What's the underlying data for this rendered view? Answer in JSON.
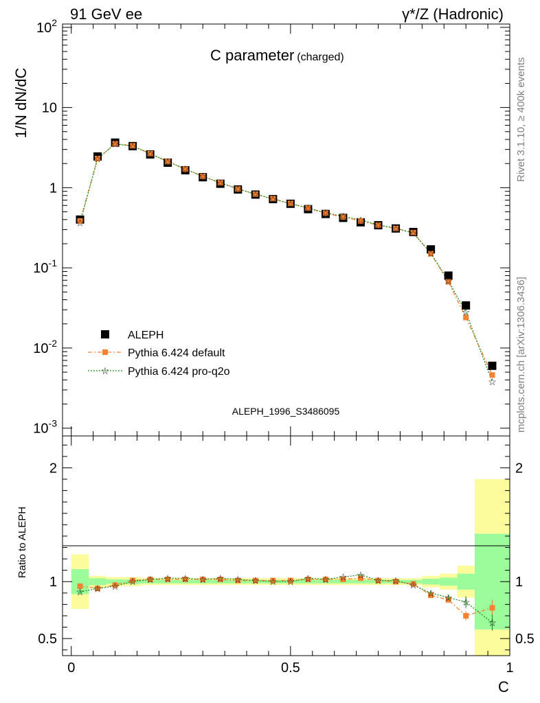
{
  "header": {
    "left": "91 GeV ee",
    "right": "γ*/Z (Hadronic)"
  },
  "side_labels": {
    "top": "Rivet 3.1.10, ≥ 400k events",
    "bottom": "mcplots.cern.ch [arXiv:1306.3436]"
  },
  "colors": {
    "data": "#000000",
    "default": "#f58231",
    "proq2o": "#1f8f1f",
    "band_inner": "#9cfc9c",
    "band_outer": "#fcfc9c"
  },
  "chart_data": [
    {
      "type": "line",
      "name": "main",
      "title": "C parameter",
      "title_suffix": "(charged)",
      "ylabel": "1/N dN/dC",
      "yscale": "log",
      "ylim": [
        0.0008,
        110
      ],
      "xlim": [
        -0.02,
        1.0
      ],
      "ytick_labels": [
        "10^-3",
        "10^-2",
        "10^-1",
        "1",
        "10",
        "10^2"
      ],
      "watermark": "ALEPH_1996_S3486095",
      "x": [
        0.02,
        0.06,
        0.1,
        0.14,
        0.18,
        0.22,
        0.26,
        0.3,
        0.34,
        0.38,
        0.42,
        0.46,
        0.5,
        0.54,
        0.58,
        0.62,
        0.66,
        0.7,
        0.74,
        0.78,
        0.82,
        0.86,
        0.9,
        0.96
      ],
      "series": [
        {
          "name": "ALEPH",
          "marker": "square",
          "values": [
            0.4,
            2.45,
            3.65,
            3.3,
            2.6,
            2.05,
            1.65,
            1.35,
            1.12,
            0.95,
            0.82,
            0.72,
            0.63,
            0.54,
            0.47,
            0.42,
            0.37,
            0.34,
            0.31,
            0.28,
            0.17,
            0.08,
            0.034,
            0.006
          ]
        },
        {
          "name": "Pythia 6.424 default",
          "marker": "square-small",
          "values": [
            0.385,
            2.31,
            3.53,
            3.33,
            2.66,
            2.11,
            1.7,
            1.38,
            1.15,
            0.96,
            0.83,
            0.73,
            0.635,
            0.555,
            0.48,
            0.43,
            0.385,
            0.34,
            0.31,
            0.275,
            0.15,
            0.067,
            0.024,
            0.0046
          ]
        },
        {
          "name": "Pythia 6.424 pro-q2o",
          "marker": "star",
          "values": [
            0.365,
            2.3,
            3.52,
            3.3,
            2.66,
            2.12,
            1.71,
            1.39,
            1.15,
            0.97,
            0.83,
            0.72,
            0.63,
            0.56,
            0.485,
            0.44,
            0.395,
            0.345,
            0.31,
            0.272,
            0.152,
            0.069,
            0.028,
            0.0038
          ]
        }
      ]
    },
    {
      "type": "line",
      "name": "ratio",
      "ylabel": "Ratio to ALEPH",
      "ylim": [
        0.35,
        2.28
      ],
      "xlim": [
        -0.02,
        1.0
      ],
      "xlabel": "C",
      "ytick_labels": [
        "0.5",
        "1",
        "2"
      ],
      "xtick_labels": [
        "0",
        "0.5",
        "1"
      ],
      "bands": {
        "edges": [
          0.0,
          0.04,
          0.08,
          0.12,
          0.16,
          0.2,
          0.24,
          0.28,
          0.32,
          0.36,
          0.4,
          0.44,
          0.48,
          0.52,
          0.56,
          0.6,
          0.64,
          0.68,
          0.72,
          0.76,
          0.8,
          0.84,
          0.88,
          0.92,
          1.0
        ],
        "inner_lo": [
          0.89,
          0.97,
          0.98,
          0.98,
          0.985,
          0.985,
          0.985,
          0.985,
          0.985,
          0.985,
          0.985,
          0.985,
          0.985,
          0.985,
          0.985,
          0.985,
          0.985,
          0.985,
          0.985,
          0.985,
          0.975,
          0.965,
          0.93,
          0.58
        ],
        "inner_hi": [
          1.11,
          1.03,
          1.02,
          1.02,
          1.015,
          1.015,
          1.015,
          1.015,
          1.015,
          1.015,
          1.015,
          1.015,
          1.015,
          1.015,
          1.015,
          1.015,
          1.015,
          1.015,
          1.015,
          1.015,
          1.025,
          1.035,
          1.07,
          1.42
        ],
        "outer_lo": [
          0.76,
          0.95,
          0.96,
          0.96,
          0.97,
          0.97,
          0.97,
          0.97,
          0.97,
          0.97,
          0.97,
          0.97,
          0.97,
          0.97,
          0.97,
          0.97,
          0.97,
          0.97,
          0.97,
          0.97,
          0.95,
          0.93,
          0.86,
          0.35
        ],
        "outer_hi": [
          1.24,
          1.05,
          1.04,
          1.04,
          1.03,
          1.03,
          1.03,
          1.03,
          1.03,
          1.03,
          1.03,
          1.03,
          1.03,
          1.03,
          1.03,
          1.03,
          1.03,
          1.03,
          1.03,
          1.03,
          1.05,
          1.07,
          1.14,
          1.9
        ]
      },
      "x": [
        0.02,
        0.06,
        0.1,
        0.14,
        0.18,
        0.22,
        0.26,
        0.3,
        0.34,
        0.38,
        0.42,
        0.46,
        0.5,
        0.54,
        0.58,
        0.62,
        0.66,
        0.7,
        0.74,
        0.78,
        0.82,
        0.86,
        0.9,
        0.96
      ],
      "series": [
        {
          "name": "Pythia 6.424 default",
          "values": [
            0.96,
            0.94,
            0.97,
            1.01,
            1.02,
            1.02,
            1.02,
            1.02,
            1.02,
            1.01,
            1.01,
            1.01,
            1.01,
            1.02,
            1.02,
            1.02,
            1.03,
            1.01,
            1.0,
            0.98,
            0.88,
            0.84,
            0.7,
            0.77
          ],
          "errors": [
            0.01,
            0.01,
            0.005,
            0.005,
            0.005,
            0.005,
            0.005,
            0.005,
            0.005,
            0.005,
            0.005,
            0.005,
            0.005,
            0.005,
            0.005,
            0.005,
            0.005,
            0.005,
            0.005,
            0.008,
            0.015,
            0.02,
            0.04,
            0.07
          ]
        },
        {
          "name": "Pythia 6.424 pro-q2o",
          "values": [
            0.91,
            0.94,
            0.96,
            1.0,
            1.02,
            1.03,
            1.03,
            1.02,
            1.03,
            1.02,
            1.01,
            1.0,
            1.0,
            1.03,
            1.02,
            1.04,
            1.06,
            1.01,
            1.01,
            0.97,
            0.9,
            0.86,
            0.82,
            0.64
          ],
          "errors": [
            0.01,
            0.01,
            0.005,
            0.005,
            0.005,
            0.005,
            0.005,
            0.005,
            0.005,
            0.005,
            0.005,
            0.005,
            0.005,
            0.005,
            0.005,
            0.005,
            0.005,
            0.005,
            0.005,
            0.008,
            0.015,
            0.02,
            0.05,
            0.07
          ]
        }
      ]
    }
  ]
}
